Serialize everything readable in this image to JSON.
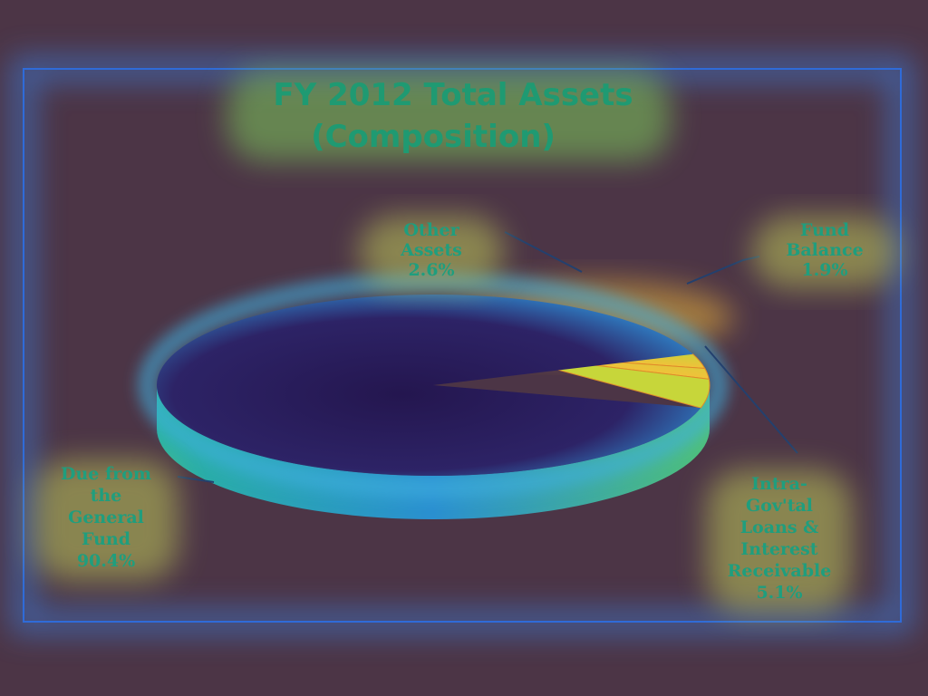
{
  "chart_data": {
    "type": "pie",
    "title": "FY 2012 Total Assets",
    "subtitle": "(Composition)",
    "slices": [
      {
        "label_lines": [
          "Due from",
          "the",
          "General",
          "Fund"
        ],
        "value_label": "90.4%",
        "value": 90.4
      },
      {
        "label_lines": [
          "Other",
          "Assets"
        ],
        "value_label": "2.6%",
        "value": 2.6
      },
      {
        "label_lines": [
          "Fund",
          "Balance"
        ],
        "value_label": "1.9%",
        "value": 1.9
      },
      {
        "label_lines": [
          "Intra-",
          "Gov'tal",
          "Loans &",
          "Interest",
          "Receivable"
        ],
        "value_label": "5.1%",
        "value": 5.1
      }
    ]
  },
  "colors": {
    "background": "#4c3546",
    "frame": "#3a7fe0",
    "text": "#1f9e7e",
    "pie_top": "#2e1f5a",
    "pie_side": "#2ba5b8",
    "hot": "#f39a2c"
  }
}
